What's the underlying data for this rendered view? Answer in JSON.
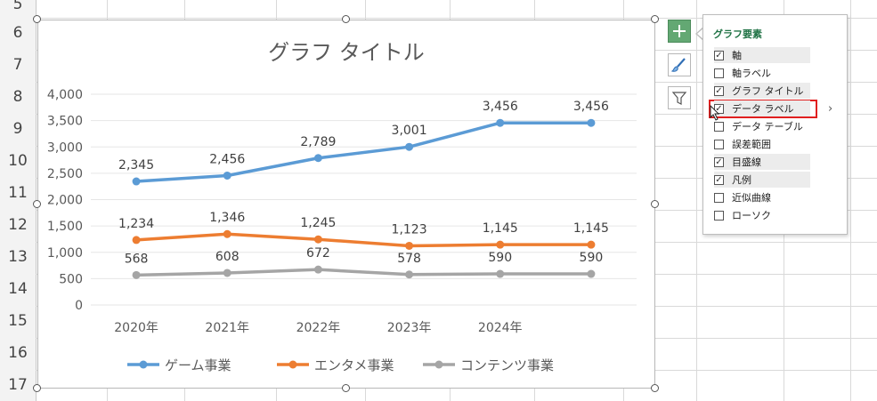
{
  "row_numbers": [
    "5",
    "6",
    "7",
    "8",
    "9",
    "10",
    "11",
    "12",
    "13",
    "14",
    "15",
    "16",
    "17"
  ],
  "chart_data": {
    "type": "line",
    "title": "グラフ タイトル",
    "categories": [
      "2020年",
      "2021年",
      "2022年",
      "2023年",
      "2024年",
      ""
    ],
    "y_ticks": [
      "4,000",
      "3,500",
      "3,000",
      "2,500",
      "2,000",
      "1,500",
      "1,000",
      "500",
      "0"
    ],
    "ylim": [
      0,
      4000
    ],
    "series": [
      {
        "name": "ゲーム事業",
        "color": "#5b9bd5",
        "values": [
          2345,
          2456,
          2789,
          3001,
          3456,
          3456
        ],
        "labels": [
          "2,345",
          "2,456",
          "2,789",
          "3,001",
          "3,456",
          "3,456"
        ]
      },
      {
        "name": "エンタメ事業",
        "color": "#ed7d31",
        "values": [
          1234,
          1346,
          1245,
          1123,
          1145,
          1145
        ],
        "labels": [
          "1,234",
          "1,346",
          "1,245",
          "1,123",
          "1,145",
          "1,145"
        ]
      },
      {
        "name": "コンテンツ事業",
        "color": "#a5a5a5",
        "values": [
          568,
          608,
          672,
          578,
          590,
          590
        ],
        "labels": [
          "568",
          "608",
          "672",
          "578",
          "590",
          "590"
        ]
      }
    ],
    "grid": true,
    "legend": "bottom"
  },
  "chart_elements_panel": {
    "title": "グラフ要素",
    "items": [
      {
        "label": "軸",
        "checked": true
      },
      {
        "label": "軸ラベル",
        "checked": false
      },
      {
        "label": "グラフ タイトル",
        "checked": true
      },
      {
        "label": "データ ラベル",
        "checked": true
      },
      {
        "label": "データ テーブル",
        "checked": false
      },
      {
        "label": "誤差範囲",
        "checked": false
      },
      {
        "label": "目盛線",
        "checked": true
      },
      {
        "label": "凡例",
        "checked": true
      },
      {
        "label": "近似曲線",
        "checked": false
      },
      {
        "label": "ローソク",
        "checked": false
      }
    ],
    "submenu_arrow": "›"
  },
  "side_buttons": {
    "plus": "chart-elements-button",
    "brush": "chart-styles-button",
    "filter": "chart-filters-button"
  }
}
